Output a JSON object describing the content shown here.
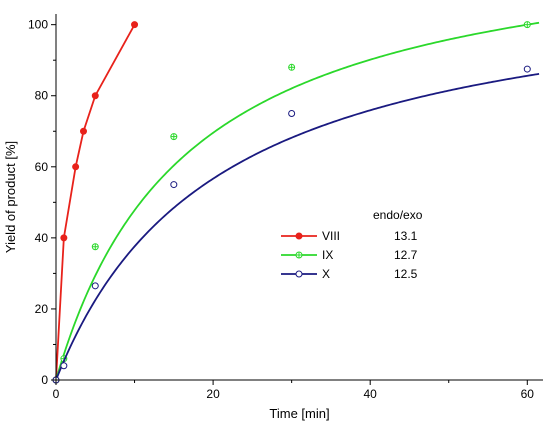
{
  "chart_data": {
    "type": "scatter",
    "xlabel": "Time [min]",
    "ylabel": "Yield of product [%]",
    "xlim": [
      0,
      62
    ],
    "ylim": [
      0,
      103
    ],
    "xticks": [
      0,
      20,
      40,
      60
    ],
    "yticks": [
      0,
      20,
      40,
      60,
      80,
      100
    ],
    "grid": false,
    "legend": {
      "placement": "center-right",
      "header": "endo/exo"
    },
    "series": [
      {
        "name": "VIII",
        "color": "#e8221b",
        "marker": "filled-circle",
        "endo_exo": "13.1",
        "line_connects_points": true,
        "points": [
          [
            0,
            0
          ],
          [
            1,
            40
          ],
          [
            2.5,
            60
          ],
          [
            3.5,
            70
          ],
          [
            5,
            80
          ],
          [
            10,
            100
          ]
        ]
      },
      {
        "name": "IX",
        "color": "#2bd82b",
        "marker": "crossed-circle",
        "endo_exo": "12.7",
        "fit_model": "y = a*x/(b+x)",
        "fit_params": {
          "a": 128,
          "b": 16.8
        },
        "points": [
          [
            0,
            0
          ],
          [
            1,
            6
          ],
          [
            5,
            37.5
          ],
          [
            15,
            68.5
          ],
          [
            30,
            88
          ],
          [
            60,
            100
          ]
        ]
      },
      {
        "name": "X",
        "color": "#1a1a80",
        "marker": "open-circle",
        "endo_exo": "12.5",
        "fit_model": "y = a*x/(b+x)",
        "fit_params": {
          "a": 115,
          "b": 20.6
        },
        "points": [
          [
            0,
            0
          ],
          [
            1,
            4
          ],
          [
            5,
            26.5
          ],
          [
            15,
            55
          ],
          [
            30,
            75
          ],
          [
            60,
            87.5
          ]
        ]
      }
    ]
  }
}
